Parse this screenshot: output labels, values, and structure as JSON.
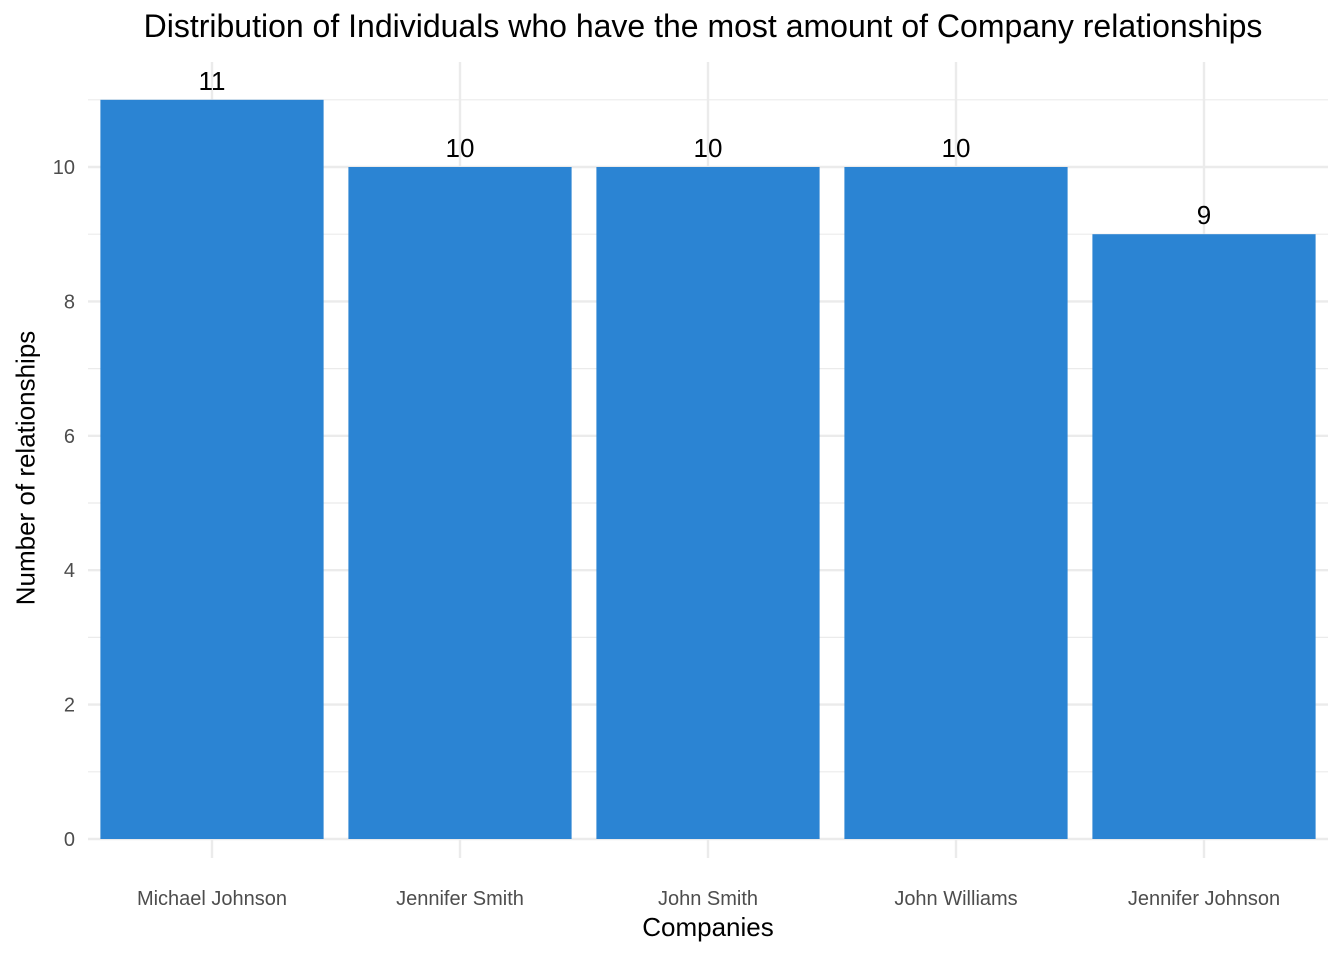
{
  "chart_data": {
    "type": "bar",
    "title": "Distribution of Individuals who have the most amount of Company relationships",
    "xlabel": "Companies",
    "ylabel": "Number of relationships",
    "categories": [
      "Michael Johnson",
      "Jennifer Smith",
      "John Smith",
      "John Williams",
      "Jennifer Johnson"
    ],
    "values": [
      11,
      10,
      10,
      10,
      9
    ],
    "data_labels": [
      "11",
      "10",
      "10",
      "10",
      "9"
    ],
    "y_ticks": [
      0,
      2,
      4,
      6,
      8,
      10
    ],
    "ylim": [
      0,
      11.55
    ],
    "grid": true,
    "legend": "none",
    "colors": {
      "bar": "#2b84d3",
      "grid": "#ebebeb",
      "tick_text": "#4d4d4d"
    }
  }
}
